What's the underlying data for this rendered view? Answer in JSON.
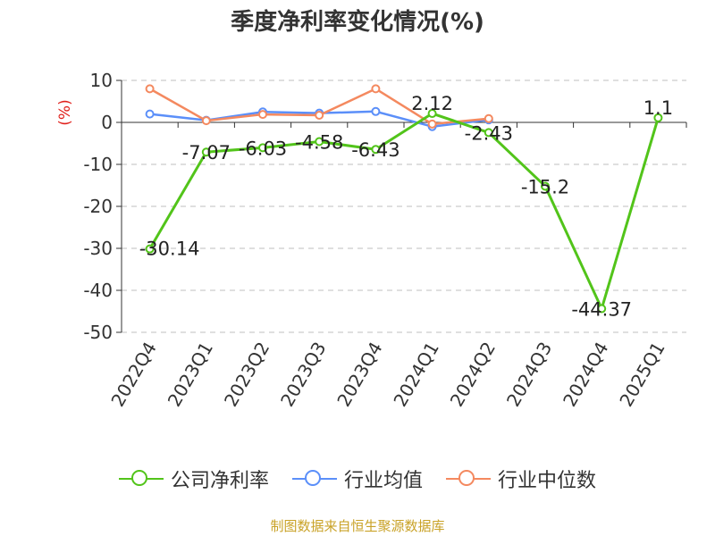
{
  "chart_data": {
    "type": "line",
    "title": "季度净利率变化情况(%)",
    "ylabel": "(%)",
    "ylim": [
      -50,
      10
    ],
    "yticks": [
      10,
      0,
      -10,
      -20,
      -30,
      -40,
      -50
    ],
    "categories": [
      "2022Q4",
      "2023Q1",
      "2023Q2",
      "2023Q3",
      "2023Q4",
      "2024Q1",
      "2024Q2",
      "2024Q3",
      "2024Q4",
      "2025Q1"
    ],
    "grid": true,
    "legend_position": "bottom",
    "series": [
      {
        "name": "公司净利率",
        "color": "#52c41a",
        "values": [
          -30.14,
          -7.07,
          -6.03,
          -4.58,
          -6.43,
          2.12,
          -2.43,
          -15.2,
          -44.37,
          1.1
        ],
        "labels": [
          "-30.14",
          "-7.07",
          "-6.03",
          "-4.58",
          "-6.43",
          "2.12",
          "-2.43",
          "-15.2",
          "-44.37",
          "1.1"
        ]
      },
      {
        "name": "行业均值",
        "color": "#5b8ff9",
        "values": [
          2.0,
          0.5,
          2.5,
          2.2,
          2.6,
          -1.0,
          0.6,
          null,
          null,
          null
        ]
      },
      {
        "name": "行业中位数",
        "color": "#f4895f",
        "values": [
          8.0,
          0.4,
          1.9,
          1.7,
          8.0,
          -0.4,
          0.9,
          null,
          null,
          null
        ]
      }
    ]
  },
  "footer": {
    "source": "制图数据来自恒生聚源数据库"
  }
}
